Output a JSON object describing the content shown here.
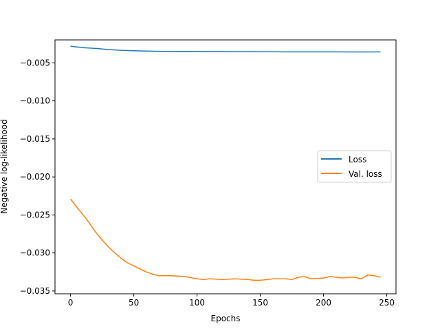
{
  "chart_data": {
    "type": "line",
    "xlabel": "Epochs",
    "ylabel": "Negative log-likelihood",
    "xlim": [
      -12.3,
      257.3
    ],
    "ylim": [
      -0.03537,
      -0.00198
    ],
    "xticks": [
      0,
      50,
      100,
      150,
      200,
      250
    ],
    "xtick_labels": [
      "0",
      "50",
      "100",
      "150",
      "200",
      "250"
    ],
    "yticks": [
      -0.035,
      -0.03,
      -0.025,
      -0.02,
      -0.015,
      -0.01,
      -0.005
    ],
    "ytick_labels": [
      "−0.035",
      "−0.030",
      "−0.025",
      "−0.020",
      "−0.015",
      "−0.010",
      "−0.005"
    ],
    "legend_position": "center-right",
    "grid": false,
    "series": [
      {
        "name": "Loss",
        "color": "#1f77b4",
        "x": [
          0,
          5,
          10,
          20,
          30,
          40,
          50,
          60,
          70,
          80,
          90,
          100,
          110,
          120,
          130,
          140,
          150,
          160,
          170,
          180,
          190,
          200,
          210,
          220,
          230,
          240,
          245
        ],
        "y": [
          -0.0028,
          -0.0029,
          -0.003,
          -0.0031,
          -0.00325,
          -0.00335,
          -0.0034,
          -0.00345,
          -0.00348,
          -0.0035,
          -0.0035,
          -0.0035,
          -0.00352,
          -0.00352,
          -0.00353,
          -0.00353,
          -0.00354,
          -0.00354,
          -0.00355,
          -0.00355,
          -0.00355,
          -0.00355,
          -0.00355,
          -0.00356,
          -0.00356,
          -0.00356,
          -0.00355
        ]
      },
      {
        "name": "Val. loss",
        "color": "#ff7f0e",
        "x": [
          0,
          5,
          10,
          15,
          20,
          25,
          30,
          35,
          40,
          45,
          50,
          55,
          60,
          65,
          70,
          80,
          90,
          100,
          105,
          110,
          120,
          130,
          140,
          145,
          150,
          160,
          170,
          175,
          180,
          185,
          190,
          200,
          205,
          210,
          215,
          220,
          225,
          230,
          235,
          240,
          245
        ],
        "y": [
          -0.0229,
          -0.024,
          -0.025,
          -0.0261,
          -0.0273,
          -0.0283,
          -0.0292,
          -0.03,
          -0.0307,
          -0.0313,
          -0.0317,
          -0.0321,
          -0.0325,
          -0.0328,
          -0.033,
          -0.033,
          -0.0331,
          -0.0334,
          -0.0335,
          -0.0334,
          -0.0335,
          -0.0334,
          -0.0335,
          -0.0336,
          -0.0336,
          -0.0334,
          -0.0334,
          -0.0335,
          -0.0332,
          -0.0331,
          -0.0334,
          -0.0333,
          -0.0331,
          -0.0332,
          -0.0333,
          -0.0332,
          -0.0332,
          -0.0334,
          -0.0329,
          -0.033,
          -0.0332
        ]
      }
    ]
  }
}
